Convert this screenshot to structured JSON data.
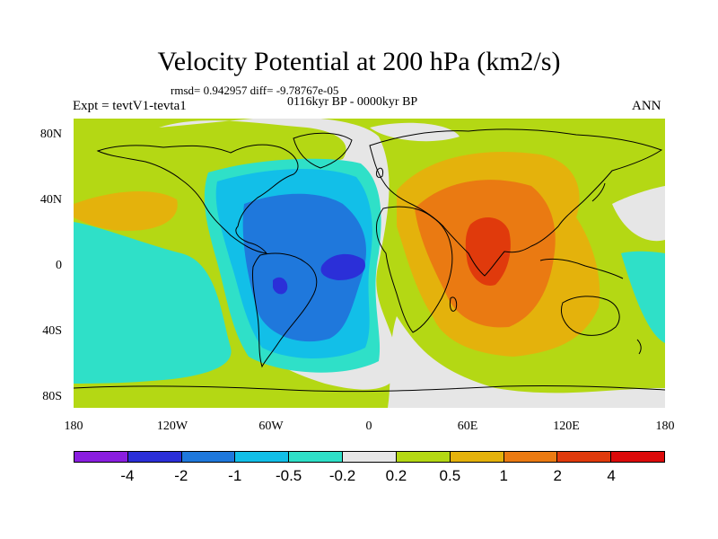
{
  "title": "Velocity Potential at 200 hPa (km2/s)",
  "stats": "rmsd= 0.942957 diff= -9.78767e-05",
  "subtitle": "0116kyr BP - 0000kyr BP",
  "experiment": "Expt = tevtV1-tevta1",
  "season": "ANN",
  "lat_labels": [
    "80N",
    "40N",
    "0",
    "40S",
    "80S"
  ],
  "lon_labels": [
    "180",
    "120W",
    "60W",
    "0",
    "60E",
    "120E",
    "180"
  ],
  "colorbar": {
    "labels": [
      "-4",
      "-2",
      "-1",
      "-0.5",
      "-0.2",
      "0.2",
      "0.5",
      "1",
      "2",
      "4"
    ],
    "colors": [
      "#8a1ee0",
      "#2b2fd8",
      "#1f78dc",
      "#12bfe8",
      "#2fe0c8",
      "#e6e6e6",
      "#b4d814",
      "#e4b20c",
      "#ea7a12",
      "#e03a0c",
      "#dc0a0a"
    ]
  },
  "colors": {
    "c_neg2": "#2b2fd8",
    "c_neg1": "#1f78dc",
    "c_neg05": "#12bfe8",
    "c_neg02": "#2fe0c8",
    "c_zero": "#e6e6e6",
    "c_pos02": "#b4d814",
    "c_pos05": "#e4b20c",
    "c_pos1": "#ea7a12",
    "c_pos2": "#e03a0c"
  }
}
